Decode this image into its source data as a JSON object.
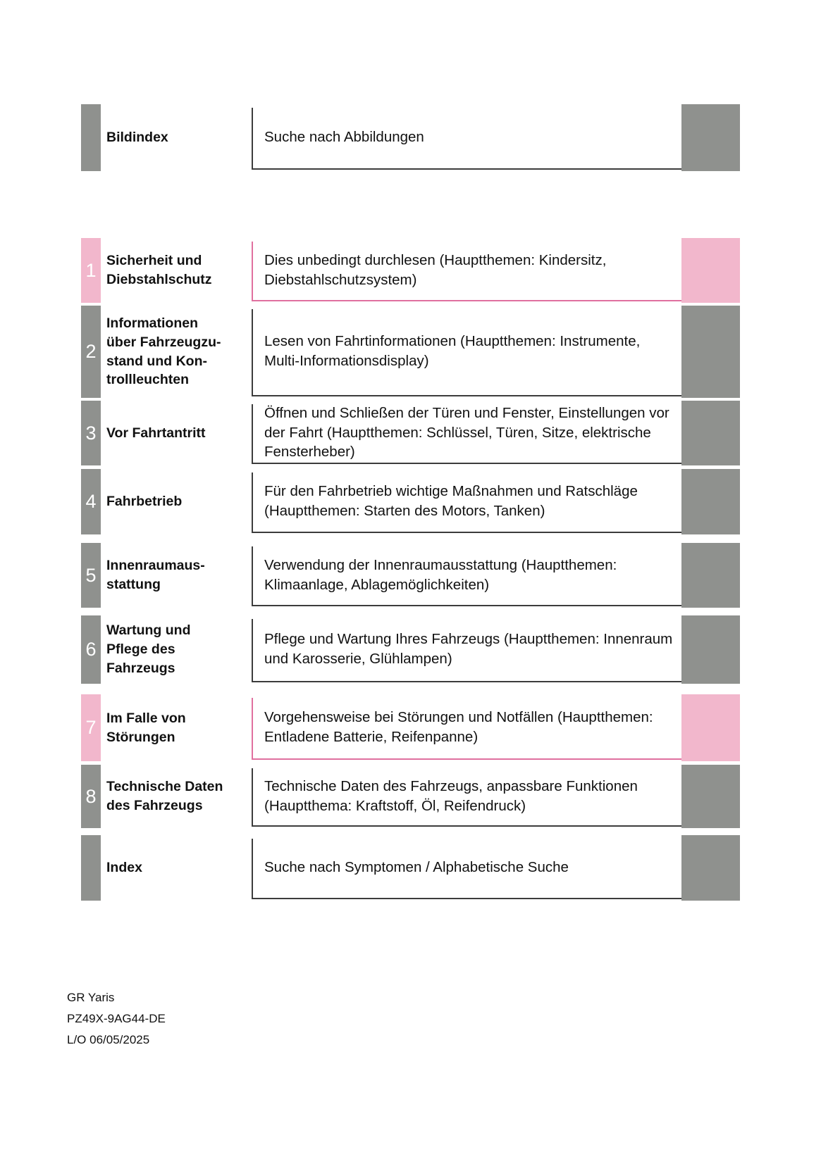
{
  "colors": {
    "tab_gray": "#8f918e",
    "tab_pink": "#f2b7cc",
    "pink_line": "#e0709f",
    "line_dark": "#3c3c3c"
  },
  "footer": {
    "model": "GR Yaris",
    "part_number": "PZ49X-9AG44-DE",
    "layout_date": "L/O 06/05/2025"
  },
  "rows": [
    {
      "number": "",
      "title": "Bildindex",
      "description": "Suche nach Abbildungen",
      "accent": "gray"
    },
    {
      "number": "1",
      "title": "Sicherheit und\nDiebstahlschutz",
      "description": "Dies unbedingt durchlesen (Hauptthemen: Kindersitz, Diebstahlschutzsystem)",
      "accent": "pink"
    },
    {
      "number": "2",
      "title": "Informationen\nüber Fahrzeugzu-\nstand und Kon-\ntrollleuchten",
      "description": "Lesen von Fahrtinformationen (Hauptthemen: Instrumente, Multi-Informationsdisplay)",
      "accent": "gray"
    },
    {
      "number": "3",
      "title": "Vor Fahrtantritt",
      "description": "Öffnen und Schließen der Türen und Fenster, Einstellungen vor der Fahrt (Hauptthemen: Schlüssel, Türen, Sitze, elektrische Fensterheber)",
      "accent": "gray"
    },
    {
      "number": "4",
      "title": "Fahrbetrieb",
      "description": "Für den Fahrbetrieb wichtige Maßnahmen und Ratschläge (Hauptthemen: Starten des Motors, Tanken)",
      "accent": "gray"
    },
    {
      "number": "5",
      "title": "Innenraumaus-\nstattung",
      "description": "Verwendung der Innenraumausstattung (Hauptthemen: Klimaanlage, Ablagemöglichkeiten)",
      "accent": "gray"
    },
    {
      "number": "6",
      "title": "Wartung und\nPflege des\nFahrzeugs",
      "description": "Pflege und Wartung Ihres Fahrzeugs (Hauptthemen: Innenraum und Karosserie, Glühlampen)",
      "accent": "gray"
    },
    {
      "number": "7",
      "title": "Im Falle von\nStörungen",
      "description": "Vorgehensweise bei Störungen und Notfällen (Hauptthemen: Entladene Batterie, Reifenpanne)",
      "accent": "pink"
    },
    {
      "number": "8",
      "title": "Technische Daten\ndes Fahrzeugs",
      "description": "Technische Daten des Fahrzeugs, anpassbare Funktionen (Hauptthema: Kraftstoff, Öl, Reifendruck)",
      "accent": "gray"
    },
    {
      "number": "",
      "title": "Index",
      "description": "Suche nach Symptomen / Alphabetische Suche",
      "accent": "gray"
    }
  ]
}
